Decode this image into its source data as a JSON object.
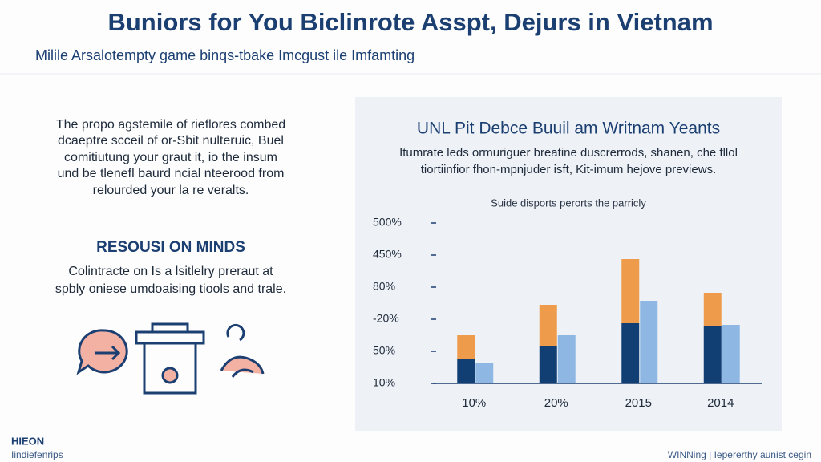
{
  "header": {
    "title": "Buniors for You Biclinrote Asspt, Dejurs in Vietnam",
    "subtitle": "Milile Arsalotempty game binqs-tbake Imcgust ile Imfamting"
  },
  "left_panel": {
    "paragraph": [
      "The propo agstemile of rieflores combed",
      "dcaeptre scceil of or-Sbit nulteruic, Buel",
      "comitiutung your graut it, io the insum",
      "und be tlenefl baurd ncial nteerood from",
      "relourded your la re veralts."
    ],
    "heading": "RESOUSI ON MINDS",
    "text": [
      "Colintracte on Is a lsitlelry preraut at",
      "spbly oniese umdoaising tiools and trale."
    ]
  },
  "footer": {
    "brand": "HIEON",
    "brand_sub": "Iindiefenrips",
    "note": "WINNing | Iepererthy aunist cegin"
  },
  "chart_data": {
    "type": "bar",
    "title": "UNL Pit Debce Buuil am Writnam Yeants",
    "subtitle": [
      "Itumrate leds ormuriguer breatine duscrerrods, shanen, che fllol",
      "tiortiinfior fhon-mpnjuder isft, Kit-imum hejove previews."
    ],
    "caption": "Suide disports perorts the parricly",
    "categories": [
      "10%",
      "20%",
      "2015",
      "2014"
    ],
    "series": [
      {
        "color": "#123f73",
        "values": [
          0.775,
          1.15,
          1.875,
          1.775
        ]
      },
      {
        "color": "#ef9b4c",
        "values": [
          0.725,
          1.3,
          2.0,
          1.05
        ]
      },
      {
        "color": "#8fb7e3",
        "values": [
          0.65,
          1.5,
          2.575,
          1.825
        ]
      }
    ],
    "ylim": [
      0,
      5
    ],
    "yticks": [
      {
        "value": 0,
        "label": "10%"
      },
      {
        "value": 1,
        "label": "50%"
      },
      {
        "value": 2,
        "label": "-20%"
      },
      {
        "value": 3,
        "label": "80%"
      },
      {
        "value": 4,
        "label": "450%"
      },
      {
        "value": 5,
        "label": "500%"
      }
    ],
    "grid": false
  }
}
